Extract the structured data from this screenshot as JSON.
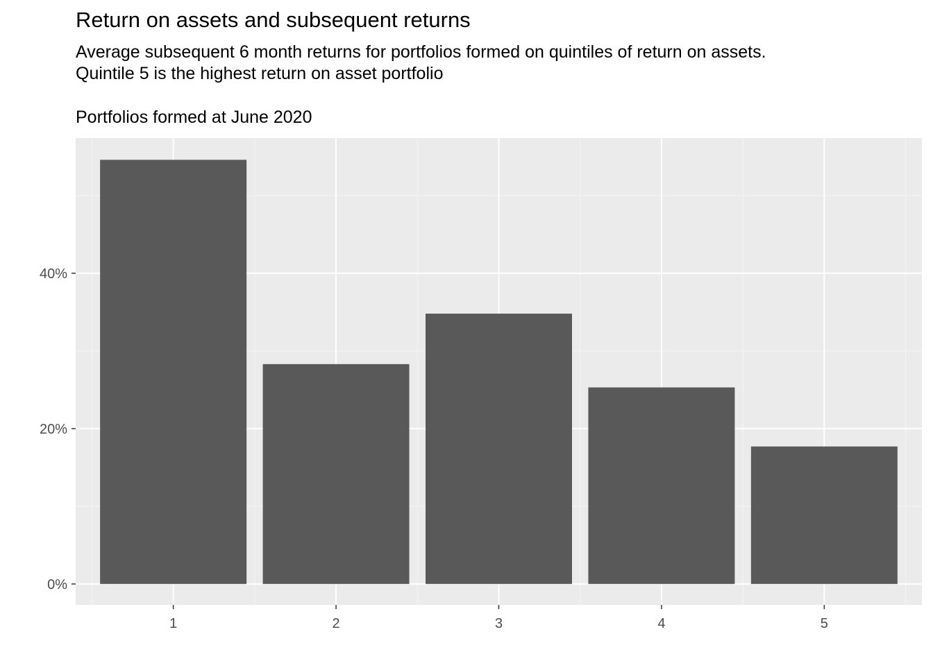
{
  "chart_data": {
    "type": "bar",
    "title": "Return on assets and subsequent returns",
    "subtitle": "Average subsequent 6 month returns for portfolios formed on quintiles of return on assets.\nQuintile 5 is the highest return on asset portfolio",
    "caption": "Portfolios formed at June 2020",
    "xlabel": "",
    "ylabel": "",
    "categories": [
      "1",
      "2",
      "3",
      "4",
      "5"
    ],
    "values": [
      0.546,
      0.283,
      0.348,
      0.253,
      0.177
    ],
    "ylim": [
      -0.027,
      0.574
    ],
    "y_ticks": [
      0,
      0.2,
      0.4
    ],
    "y_tick_labels": [
      "0%",
      "20%",
      "40%"
    ],
    "grid": true,
    "legend": "none",
    "colors": {
      "bar": "#595959",
      "panel_background": "#ebebeb",
      "grid_major": "#ffffff",
      "grid_minor": "#f5f5f5",
      "tick_text": "#4d4d4d",
      "tick_mark": "#333333"
    }
  }
}
